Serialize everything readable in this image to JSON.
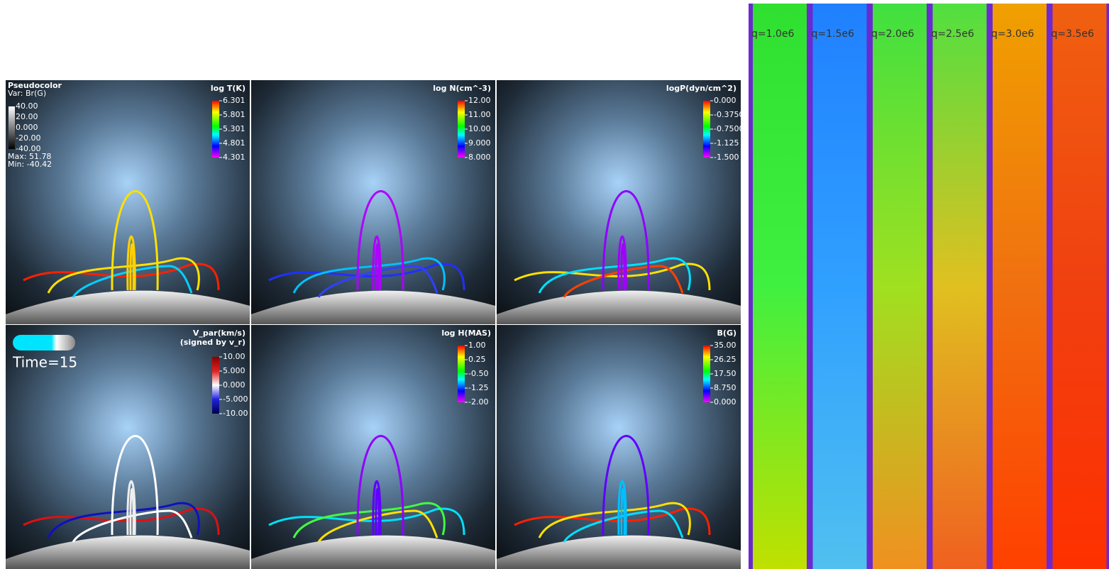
{
  "panels": [
    {
      "title": "log T(K)",
      "colorbar_ticks": [
        "6.301",
        "5.801",
        "5.301",
        "4.801",
        "4.301"
      ]
    },
    {
      "title": "log N(cm^-3)",
      "colorbar_ticks": [
        "12.00",
        "11.00",
        "10.00",
        "9.000",
        "8.000"
      ]
    },
    {
      "title": "logP(dyn/cm^2)",
      "colorbar_ticks": [
        "0.000",
        "-0.3750",
        "-0.7500",
        "-1.125",
        "-1.500"
      ]
    },
    {
      "title": "V_par(km/s)",
      "subtitle": "(signed by v_r)",
      "colorbar_ticks": [
        "10.00",
        "5.000",
        "0.000",
        "-5.000",
        "-10.00"
      ]
    },
    {
      "title": "log H(MAS)",
      "colorbar_ticks": [
        "1.00",
        "0.25",
        "-0.50",
        "-1.25",
        "-2.00"
      ]
    },
    {
      "title": "B(G)",
      "colorbar_ticks": [
        "35.00",
        "26.25",
        "17.50",
        "8.750",
        "0.000"
      ]
    }
  ],
  "legend": {
    "title": "Pseudocolor",
    "var": "Var: Br(G)",
    "ticks": [
      "40.00",
      "20.00",
      "0.000",
      "-20.00",
      "-40.00"
    ],
    "max": "Max:  51.78",
    "min": "Min: -40.42"
  },
  "time": "Time=15",
  "strips": {
    "labels": [
      "q=1.0e6",
      "q=1.5e6",
      "q=2.0e6",
      "q=2.5e6",
      "q=3.0e6",
      "q=3.5e6"
    ]
  }
}
